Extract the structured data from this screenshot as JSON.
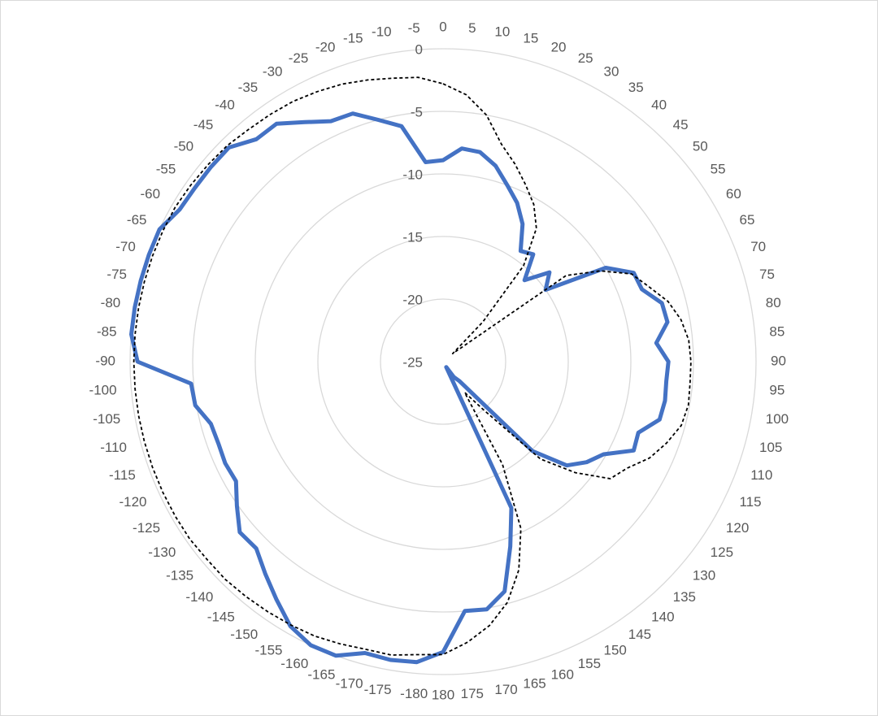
{
  "chart_data": {
    "type": "radar",
    "categories": [
      "0",
      "5",
      "10",
      "15",
      "20",
      "25",
      "30",
      "35",
      "40",
      "45",
      "50",
      "55",
      "60",
      "65",
      "70",
      "75",
      "80",
      "85",
      "90",
      "95",
      "100",
      "105",
      "110",
      "115",
      "120",
      "125",
      "130",
      "135",
      "140",
      "145",
      "150",
      "155",
      "160",
      "165",
      "170",
      "175",
      "180",
      "-180",
      "-175",
      "-170",
      "-165",
      "-160",
      "-155",
      "-150",
      "-145",
      "-140",
      "-135",
      "-130",
      "-125",
      "-120",
      "-115",
      "-110",
      "-105",
      "-100",
      "-90",
      "-85",
      "-80",
      "-75",
      "-70",
      "-65",
      "-60",
      "-55",
      "-50",
      "-45",
      "-40",
      "-35",
      "-30",
      "-25",
      "-20",
      "-15",
      "-10",
      "-5"
    ],
    "series": [
      {
        "color": "#4472c4",
        "line_style": "solid",
        "values": [
          -8.9,
          -7.9,
          -8,
          -8.8,
          -10,
          -11,
          -12.3,
          -14.2,
          -13.8,
          -15.8,
          -13.9,
          -15,
          -10,
          -8.2,
          -8.1,
          -6.9,
          -6.8,
          -7.9,
          -7,
          -7.1,
          -7,
          -7.1,
          -8.4,
          -8.2,
          -10.2,
          -11,
          -12.1,
          -14.9,
          -23,
          -23.5,
          -24.5,
          -12.1,
          -9.3,
          -6,
          -4.9,
          -5,
          -1.8,
          -0.9,
          -0.8,
          -0.9,
          0,
          0,
          -0.6,
          -1.8,
          -2.9,
          -3.9,
          -3.8,
          -4.9,
          -5.9,
          -5.8,
          -5.9,
          -5.8,
          -4.9,
          -4.8,
          -0.6,
          0,
          0,
          0,
          0,
          0,
          -0.7,
          -0.8,
          -0.8,
          -0.8,
          -1.8,
          -1.8,
          -2.9,
          -3.8,
          -3.9,
          -5,
          -5.9,
          -9
        ]
      },
      {
        "color": "#000000",
        "line_style": "dashed",
        "values": [
          -2.8,
          -3.6,
          -5,
          -7,
          -8.2,
          -9.4,
          -10.5,
          -12,
          -15,
          -20.5,
          -24,
          -13,
          -10.5,
          -8.4,
          -7.5,
          -6.4,
          -5.7,
          -5.3,
          -5.2,
          -5.2,
          -5.1,
          -5.3,
          -6,
          -6.8,
          -8,
          -8.7,
          -11.2,
          -14,
          -20,
          -22,
          -15.5,
          -10.3,
          -7.3,
          -5.1,
          -3.6,
          -2.5,
          -1.6,
          -1.5,
          -1.2,
          -1.2,
          -1,
          -0.8,
          -0.7,
          -0.6,
          -0.5,
          -0.4,
          -0.4,
          -0.3,
          -0.3,
          -0.3,
          -0.3,
          -0.3,
          -0.3,
          -0.3,
          -0.3,
          -0.3,
          -0.3,
          -0.3,
          -0.3,
          -0.3,
          -0.3,
          -0.4,
          -0.5,
          -0.6,
          -0.8,
          -0.9,
          -1,
          -1.2,
          -1.4,
          -1.7,
          -2,
          -2.2
        ]
      }
    ],
    "rlim": [
      -25,
      0
    ],
    "rticks": [
      -25,
      -20,
      -15,
      -10,
      -5,
      0
    ],
    "grid": true
  }
}
